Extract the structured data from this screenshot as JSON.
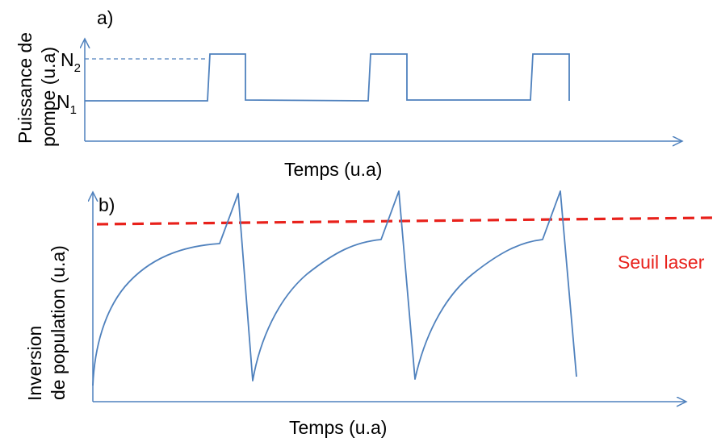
{
  "panel_a": {
    "label": "a)",
    "y_axis_label_line1": "Puissance de",
    "y_axis_label_line2": "pompe (u.a)",
    "x_axis_label": "Temps (u.a)",
    "level_high": {
      "main": "N",
      "sub": "2"
    },
    "level_low": {
      "main": "N",
      "sub": "1"
    }
  },
  "panel_b": {
    "label": "b)",
    "y_axis_label_line1": "Inversion",
    "y_axis_label_line2": "de population (u.a)",
    "x_axis_label": "Temps (u.a)",
    "threshold_label": "Seuil laser"
  },
  "colors": {
    "curve": "#4f81bd",
    "threshold": "#e8211b",
    "text": "#000000"
  }
}
